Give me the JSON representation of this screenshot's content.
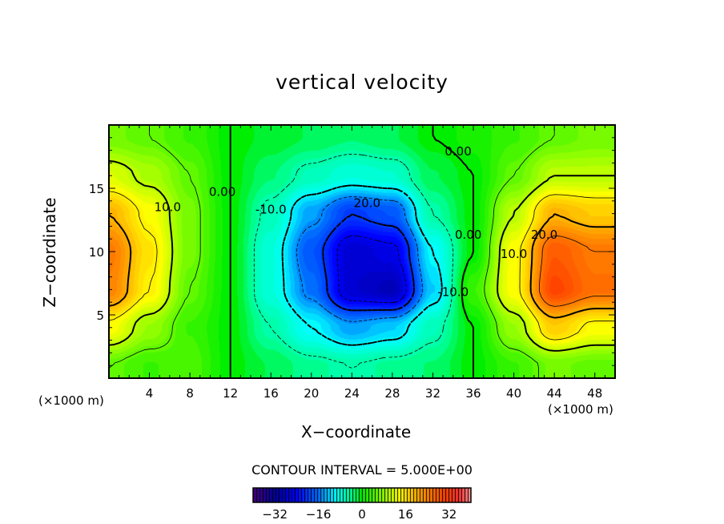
{
  "chart_data": {
    "type": "heatmap",
    "title": "vertical velocity",
    "xlabel": "X−coordinate",
    "ylabel": "Z−coordinate",
    "x_unit_label": "(×1000 m)",
    "xlim": [
      0,
      50
    ],
    "ylim": [
      0,
      20
    ],
    "xticks": [
      4,
      8,
      12,
      16,
      20,
      24,
      28,
      32,
      36,
      40,
      44,
      48
    ],
    "yticks": [
      5,
      10,
      15
    ],
    "grid": false,
    "x": [
      0,
      4,
      8,
      12,
      16,
      20,
      24,
      28,
      32,
      36,
      40,
      44,
      48
    ],
    "z": [
      19,
      16,
      13,
      10,
      7,
      4,
      1
    ],
    "values": [
      [
        6,
        5,
        3,
        0,
        -1,
        -2,
        -3,
        -2,
        0,
        1,
        3,
        5,
        6
      ],
      [
        12,
        9,
        5,
        0,
        -3,
        -6,
        -8,
        -7,
        -2,
        0,
        5,
        10,
        10
      ],
      [
        20,
        14,
        6,
        0,
        -6,
        -14,
        -20,
        -18,
        -5,
        0,
        10,
        20,
        18
      ],
      [
        25,
        16,
        6,
        0,
        -8,
        -18,
        -28,
        -26,
        -10,
        0,
        14,
        28,
        25
      ],
      [
        24,
        15,
        5,
        0,
        -8,
        -16,
        -28,
        -30,
        -12,
        3,
        14,
        30,
        26
      ],
      [
        14,
        8,
        3,
        0,
        -5,
        -10,
        -14,
        -12,
        -6,
        0,
        8,
        18,
        14
      ],
      [
        5,
        3,
        4,
        0,
        -2,
        -4,
        -5,
        -4,
        -3,
        0,
        3,
        6,
        5
      ]
    ],
    "contour_interval_label": "CONTOUR INTERVAL = 5.000E+00",
    "contour_interval": 5,
    "contour_labels": [
      {
        "text": "10.0",
        "x": 5.8,
        "z": 13.2
      },
      {
        "text": "0.00",
        "x": 11.2,
        "z": 14.4
      },
      {
        "text": "-10.0",
        "x": 16,
        "z": 13
      },
      {
        "text": "20.0",
        "x": 25.5,
        "z": 13.5
      },
      {
        "text": "0.00",
        "x": 34.5,
        "z": 17.6
      },
      {
        "text": "0.00",
        "x": 35.5,
        "z": 11
      },
      {
        "text": "-10.0",
        "x": 34,
        "z": 6.5
      },
      {
        "text": "10.0",
        "x": 40,
        "z": 9.5
      },
      {
        "text": "20.0",
        "x": 43,
        "z": 11
      }
    ],
    "colorbar": {
      "range": [
        -40,
        40
      ],
      "ticks": [
        "−32",
        "−16",
        "0",
        "16",
        "32"
      ],
      "tick_values": [
        -32,
        -16,
        0,
        16,
        32
      ],
      "colors": [
        "#4b0082",
        "#0000a0",
        "#0000ff",
        "#0070ff",
        "#00ffff",
        "#00ff99",
        "#00ee00",
        "#99ff00",
        "#ffff00",
        "#ff9900",
        "#ff4400",
        "#ff3333",
        "#ff9999"
      ],
      "color_stops": [
        -40,
        -32,
        -24,
        -16,
        -10,
        -4,
        0,
        8,
        14,
        22,
        30,
        36,
        40
      ]
    }
  }
}
